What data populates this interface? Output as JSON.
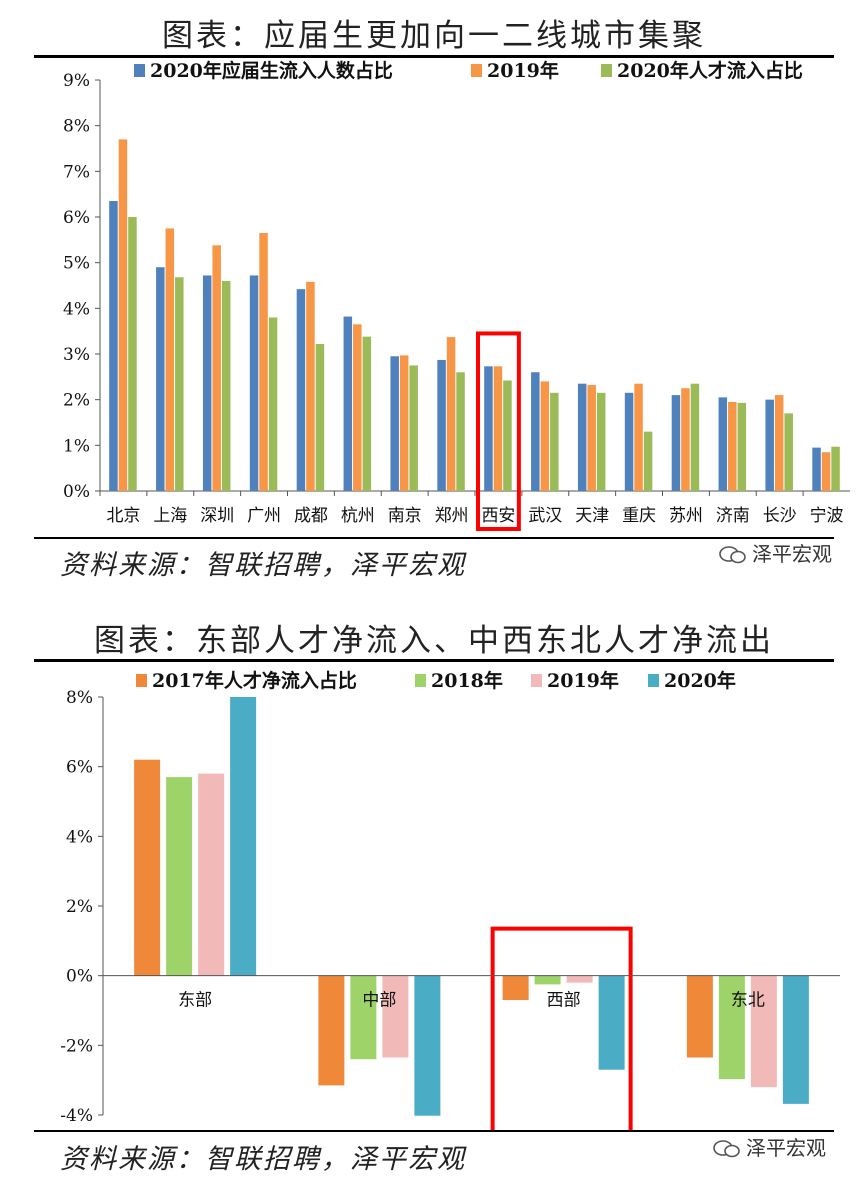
{
  "chart1": {
    "title": "图表：应届生更加向一二线城市集聚",
    "source": "资料来源：智联招聘，泽平宏观",
    "watermark": "泽平宏观",
    "chart_data": {
      "type": "bar",
      "categories": [
        "北京",
        "上海",
        "深圳",
        "广州",
        "成都",
        "杭州",
        "南京",
        "郑州",
        "西安",
        "武汉",
        "天津",
        "重庆",
        "苏州",
        "济南",
        "长沙",
        "宁波"
      ],
      "series": [
        {
          "name": "2020年应届生流入人数占比",
          "color": "#4f81bd",
          "values": [
            6.35,
            4.9,
            4.72,
            4.72,
            4.42,
            3.82,
            2.95,
            2.87,
            2.73,
            2.6,
            2.35,
            2.15,
            2.1,
            2.05,
            2.0,
            0.95
          ]
        },
        {
          "name": "2019年",
          "color": "#f79646",
          "values": [
            7.7,
            5.75,
            5.38,
            5.65,
            4.58,
            3.65,
            2.97,
            3.37,
            2.73,
            2.4,
            2.32,
            2.35,
            2.25,
            1.95,
            2.1,
            0.85
          ]
        },
        {
          "name": "2020年人才流入占比",
          "color": "#9bbb59",
          "values": [
            6.0,
            4.68,
            4.6,
            3.8,
            3.22,
            3.38,
            2.75,
            2.6,
            2.42,
            2.15,
            2.15,
            1.3,
            2.35,
            1.93,
            1.7,
            0.97
          ]
        }
      ],
      "yticks": [
        "0%",
        "1%",
        "2%",
        "3%",
        "4%",
        "5%",
        "6%",
        "7%",
        "8%",
        "9%"
      ],
      "ylim": [
        0,
        9
      ],
      "legend": "top",
      "highlight_category": "西安",
      "highlight_color": "#ff0000"
    }
  },
  "chart2": {
    "title": "图表：东部人才净流入、中西东北人才净流出",
    "source": "资料来源：智联招聘，泽平宏观",
    "watermark": "泽平宏观",
    "chart_data": {
      "type": "bar",
      "categories": [
        "东部",
        "中部",
        "西部",
        "东北"
      ],
      "series": [
        {
          "name": "2017年人才净流入占比",
          "color": "#f0883a",
          "values": [
            6.2,
            -3.15,
            -0.7,
            -2.35
          ]
        },
        {
          "name": "2018年",
          "color": "#9ed36a",
          "values": [
            5.7,
            -2.4,
            -0.25,
            -2.97
          ]
        },
        {
          "name": "2019年",
          "color": "#f2b9b9",
          "values": [
            5.8,
            -2.35,
            -0.2,
            -3.2
          ]
        },
        {
          "name": "2020年",
          "color": "#4bacc6",
          "values": [
            8.0,
            -4.02,
            -2.7,
            -3.68
          ]
        }
      ],
      "yticks": [
        "-4%",
        "-2%",
        "0%",
        "2%",
        "4%",
        "6%",
        "8%"
      ],
      "ylim": [
        -4,
        8
      ],
      "legend": "top",
      "highlight_category": "西部",
      "highlight_color": "#ff0000"
    }
  }
}
